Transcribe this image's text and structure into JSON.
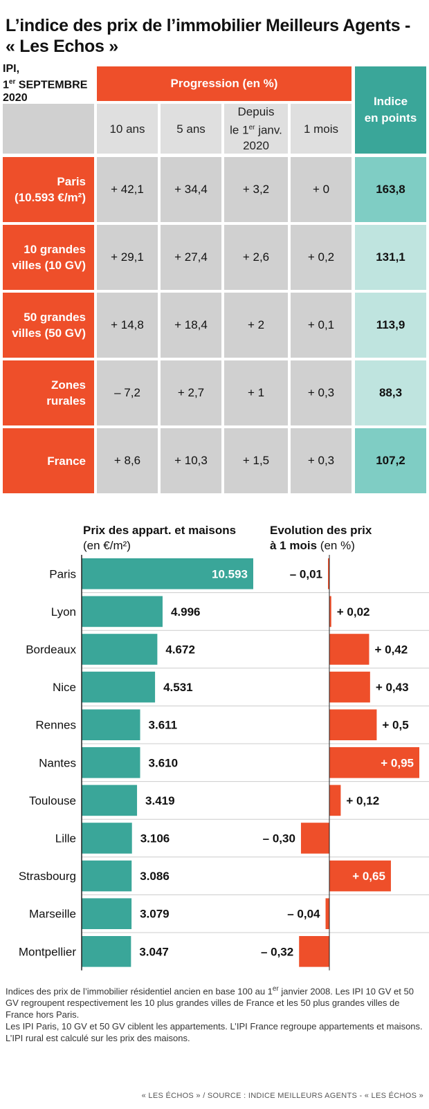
{
  "title": "L’indice des prix de l’immobilier Meilleurs Agents - « Les Echos »",
  "table": {
    "ipi_label_1": "IPI,",
    "ipi_label_2a": "1",
    "ipi_label_2sup": "er",
    "ipi_label_2b": " SEPTEMBRE",
    "ipi_label_3": "2020",
    "progression_header": "Progression (en %)",
    "index_header_1": "Indice",
    "index_header_2": "en points",
    "col_10ans": "10 ans",
    "col_5ans": "5 ans",
    "col_depuis_1": "Depuis",
    "col_depuis_2a": "le 1",
    "col_depuis_2sup": "er",
    "col_depuis_2b": " janv.",
    "col_depuis_3": "2020",
    "col_1mois": "1 mois",
    "rows": [
      {
        "label1": "Paris",
        "label2": "(10.593 €/m²)",
        "v10": "+ 42,1",
        "v5": "+ 34,4",
        "vdep": "+ 3,2",
        "v1m": "+ 0",
        "idx": "163,8"
      },
      {
        "label1": "10 grandes",
        "label2": "villes (10 GV)",
        "v10": "+ 29,1",
        "v5": "+ 27,4",
        "vdep": "+ 2,6",
        "v1m": "+ 0,2",
        "idx": "131,1"
      },
      {
        "label1": "50 grandes",
        "label2": "villes (50 GV)",
        "v10": "+ 14,8",
        "v5": "+ 18,4",
        "vdep": "+ 2",
        "v1m": "+ 0,1",
        "idx": "113,9"
      },
      {
        "label1": "Zones",
        "label2": "rurales",
        "v10": "– 7,2",
        "v5": "+ 2,7",
        "vdep": "+ 1",
        "v1m": "+ 0,3",
        "idx": "88,3"
      },
      {
        "label1": "France",
        "label2": "",
        "v10": "+ 8,6",
        "v5": "+ 10,3",
        "vdep": "+ 1,5",
        "v1m": "+ 0,3",
        "idx": "107,2"
      }
    ]
  },
  "chart_headers": {
    "price_title": "Prix des appart. et maisons",
    "price_unit": "(en €/m²)",
    "evo_title_1": "Evolution des prix",
    "evo_title_2": "à 1 mois",
    "evo_unit": "(en %)"
  },
  "chart_data": {
    "type": "bar",
    "categories": [
      "Paris",
      "Lyon",
      "Bordeaux",
      "Nice",
      "Rennes",
      "Nantes",
      "Toulouse",
      "Lille",
      "Strasbourg",
      "Marseille",
      "Montpellier"
    ],
    "series": [
      {
        "name": "Prix des appart. et maisons",
        "unit": "(en €/m²)",
        "values": [
          10593,
          4996,
          4672,
          4531,
          3611,
          3610,
          3419,
          3106,
          3086,
          3079,
          3047
        ],
        "labels": [
          "10.593",
          "4.996",
          "4.672",
          "4.531",
          "3.611",
          "3.610",
          "3.419",
          "3.106",
          "3.086",
          "3.079",
          "3.047"
        ]
      },
      {
        "name": "Evolution des prix à 1 mois",
        "unit": "(en %)",
        "values": [
          -0.01,
          0.02,
          0.42,
          0.43,
          0.5,
          0.95,
          0.12,
          -0.3,
          0.65,
          -0.04,
          -0.32
        ],
        "labels": [
          "– 0,01",
          "+ 0,02",
          "+ 0,42",
          "+ 0,43",
          "+ 0,5",
          "+ 0,95",
          "+ 0,12",
          "– 0,30",
          "+ 0,65",
          "– 0,04",
          "– 0,32"
        ]
      }
    ],
    "colors": {
      "price_bar": "#3aa699",
      "evo_bar": "#ee4f2a",
      "grid": "#cccccc",
      "axis": "#222222"
    }
  },
  "colors": {
    "orange": "#ee4f2a",
    "teal": "#3aa699",
    "teal_light": "#7fcdc4",
    "teal_lighter": "#bfe4df",
    "gray": "#d0d0d0",
    "gray_light": "#dfdfdf"
  },
  "note": {
    "line1a": "Indices des prix de l’immobilier résidentiel ancien en base 100 au 1",
    "line1sup": "er",
    "line1b": " janvier 2008. Les IPI 10 GV et 50 GV regroupent respectivement les 10 plus grandes villes de France et les 50 plus grandes villes de France hors Paris.",
    "line2": "Les IPI Paris, 10 GV et 50 GV ciblent les appartements. L’IPI France regroupe appartements et maisons. L’IPI rural est calculé sur les prix des maisons."
  },
  "source": "« LES ÉCHOS » / SOURCE : INDICE MEILLEURS AGENTS - « LES ÉCHOS »"
}
